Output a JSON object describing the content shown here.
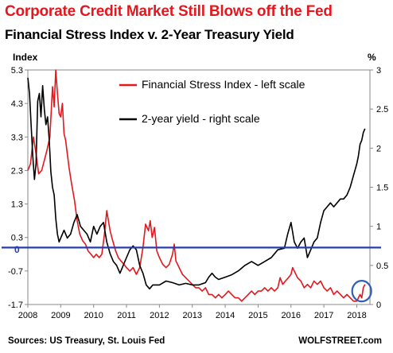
{
  "header": {
    "title": "Corporate Credit Market Still Blows off the Fed",
    "subtitle": "Financial Stress Index v. 2-Year Treasury Yield"
  },
  "footer": {
    "source": "Sources: US Treasury, St. Louis Fed",
    "brand": "WOLFSTREET.com"
  },
  "colors": {
    "fsi": "#e3181e",
    "yield": "#000000",
    "zero_line": "#2a3dae",
    "circle": "#2f5fb3",
    "title": "#e3181e"
  },
  "chart_data": {
    "type": "line",
    "left_axis": {
      "unit_label": "Index",
      "ticks": [
        -1.7,
        -0.7,
        0.3,
        1.3,
        2.3,
        3.3,
        4.3,
        5.3
      ],
      "tick_labels": [
        "-1.7",
        "-0.7",
        "0.3",
        "1.3",
        "2.3",
        "3.3",
        "4.3",
        "5.3"
      ],
      "zero_label": "0",
      "range": [
        -1.7,
        5.3
      ]
    },
    "right_axis": {
      "unit_label": "%",
      "ticks": [
        0,
        0.5,
        1,
        1.5,
        2,
        2.5,
        3
      ],
      "tick_labels": [
        "0",
        "0.5",
        "1",
        "1.5",
        "2",
        "2.5",
        "3"
      ],
      "range": [
        0,
        3
      ]
    },
    "x_axis": {
      "range": [
        2008,
        2018.4
      ],
      "ticks": [
        2008,
        2009,
        2010,
        2011,
        2012,
        2013,
        2014,
        2015,
        2016,
        2017,
        2018
      ],
      "tick_labels": [
        "2008",
        "2009",
        "2010",
        "2011",
        "2012",
        "2013",
        "2014",
        "2015",
        "2016",
        "2017",
        "2018"
      ]
    },
    "legend": {
      "position": "top-center",
      "entries": [
        "Financial Stress Index - left scale",
        "2-year yield - right scale"
      ]
    },
    "annotations": {
      "zero_line_value": 0,
      "highlight": "circle around the latest readings in early 2018"
    },
    "series": [
      {
        "name": "Financial Stress Index - left scale",
        "axis": "left",
        "x": [
          2008.0,
          2008.08,
          2008.17,
          2008.25,
          2008.33,
          2008.42,
          2008.5,
          2008.58,
          2008.67,
          2008.75,
          2008.8,
          2008.85,
          2008.9,
          2008.95,
          2009.0,
          2009.05,
          2009.1,
          2009.15,
          2009.2,
          2009.25,
          2009.33,
          2009.42,
          2009.5,
          2009.58,
          2009.67,
          2009.75,
          2009.83,
          2009.92,
          2010.0,
          2010.08,
          2010.17,
          2010.25,
          2010.33,
          2010.4,
          2010.45,
          2010.5,
          2010.58,
          2010.67,
          2010.75,
          2010.83,
          2010.92,
          2011.0,
          2011.1,
          2011.2,
          2011.3,
          2011.4,
          2011.5,
          2011.58,
          2011.67,
          2011.72,
          2011.78,
          2011.85,
          2011.92,
          2012.0,
          2012.1,
          2012.2,
          2012.3,
          2012.4,
          2012.45,
          2012.5,
          2012.6,
          2012.7,
          2012.8,
          2012.9,
          2013.0,
          2013.1,
          2013.2,
          2013.3,
          2013.4,
          2013.5,
          2013.6,
          2013.7,
          2013.8,
          2013.9,
          2014.0,
          2014.1,
          2014.2,
          2014.3,
          2014.4,
          2014.5,
          2014.6,
          2014.7,
          2014.8,
          2014.9,
          2015.0,
          2015.1,
          2015.2,
          2015.3,
          2015.4,
          2015.5,
          2015.6,
          2015.67,
          2015.75,
          2015.83,
          2015.92,
          2016.0,
          2016.05,
          2016.1,
          2016.2,
          2016.3,
          2016.4,
          2016.5,
          2016.6,
          2016.7,
          2016.8,
          2016.9,
          2017.0,
          2017.1,
          2017.2,
          2017.3,
          2017.4,
          2017.5,
          2017.6,
          2017.7,
          2017.8,
          2017.9,
          2018.0,
          2018.05,
          2018.1,
          2018.15,
          2018.2,
          2018.25
        ],
        "values": [
          2.3,
          2.5,
          3.3,
          2.8,
          2.2,
          2.3,
          2.6,
          2.9,
          3.3,
          4.8,
          4.2,
          5.3,
          4.6,
          4.0,
          3.9,
          4.3,
          3.4,
          3.2,
          2.8,
          2.4,
          1.9,
          1.4,
          0.8,
          0.4,
          0.2,
          0.1,
          -0.1,
          -0.2,
          -0.3,
          -0.2,
          -0.3,
          -0.2,
          0.4,
          1.1,
          0.8,
          0.5,
          0.2,
          -0.1,
          -0.3,
          -0.4,
          -0.5,
          -0.6,
          -0.7,
          -0.6,
          -0.8,
          -0.6,
          0.0,
          0.7,
          0.5,
          0.8,
          0.3,
          0.6,
          -0.1,
          -0.3,
          -0.5,
          -0.6,
          -0.5,
          -0.2,
          0.1,
          -0.4,
          -0.6,
          -0.8,
          -0.9,
          -1.0,
          -1.1,
          -1.2,
          -1.2,
          -1.3,
          -1.2,
          -1.4,
          -1.4,
          -1.5,
          -1.4,
          -1.5,
          -1.4,
          -1.3,
          -1.4,
          -1.5,
          -1.5,
          -1.6,
          -1.5,
          -1.4,
          -1.3,
          -1.4,
          -1.3,
          -1.3,
          -1.2,
          -1.3,
          -1.2,
          -1.3,
          -1.2,
          -0.9,
          -1.1,
          -1.0,
          -0.9,
          -0.8,
          -0.6,
          -0.7,
          -0.9,
          -1.0,
          -1.2,
          -1.1,
          -1.2,
          -1.0,
          -1.1,
          -1.0,
          -1.2,
          -1.3,
          -1.2,
          -1.4,
          -1.3,
          -1.4,
          -1.5,
          -1.4,
          -1.5,
          -1.6,
          -1.6,
          -1.5,
          -1.4,
          -1.5,
          -1.2,
          -1.1
        ]
      },
      {
        "name": "2-year yield - right scale",
        "axis": "right",
        "x": [
          2008.0,
          2008.05,
          2008.1,
          2008.15,
          2008.2,
          2008.25,
          2008.3,
          2008.35,
          2008.4,
          2008.45,
          2008.5,
          2008.55,
          2008.6,
          2008.65,
          2008.7,
          2008.75,
          2008.8,
          2008.85,
          2008.9,
          2008.95,
          2009.0,
          2009.1,
          2009.2,
          2009.3,
          2009.4,
          2009.5,
          2009.6,
          2009.7,
          2009.8,
          2009.9,
          2010.0,
          2010.1,
          2010.2,
          2010.3,
          2010.4,
          2010.5,
          2010.6,
          2010.7,
          2010.8,
          2010.9,
          2011.0,
          2011.1,
          2011.2,
          2011.3,
          2011.4,
          2011.5,
          2011.6,
          2011.7,
          2011.8,
          2011.9,
          2012.0,
          2012.2,
          2012.4,
          2012.6,
          2012.8,
          2013.0,
          2013.2,
          2013.4,
          2013.5,
          2013.6,
          2013.7,
          2013.8,
          2014.0,
          2014.2,
          2014.4,
          2014.6,
          2014.8,
          2015.0,
          2015.2,
          2015.4,
          2015.6,
          2015.8,
          2015.9,
          2016.0,
          2016.1,
          2016.2,
          2016.3,
          2016.4,
          2016.5,
          2016.6,
          2016.7,
          2016.8,
          2016.9,
          2017.0,
          2017.1,
          2017.2,
          2017.3,
          2017.4,
          2017.5,
          2017.6,
          2017.7,
          2017.8,
          2017.9,
          2018.0,
          2018.05,
          2018.1,
          2018.15,
          2018.2,
          2018.25
        ],
        "values": [
          2.9,
          2.7,
          2.3,
          1.9,
          1.6,
          1.8,
          2.6,
          2.7,
          2.4,
          2.8,
          2.5,
          2.3,
          2.4,
          2.1,
          1.7,
          1.5,
          1.4,
          1.1,
          0.9,
          0.8,
          0.85,
          0.95,
          0.85,
          0.9,
          1.05,
          1.15,
          1.0,
          0.95,
          0.9,
          0.8,
          1.0,
          0.9,
          1.0,
          1.05,
          0.8,
          0.65,
          0.55,
          0.5,
          0.4,
          0.5,
          0.6,
          0.7,
          0.75,
          0.7,
          0.5,
          0.4,
          0.25,
          0.2,
          0.25,
          0.25,
          0.25,
          0.3,
          0.28,
          0.25,
          0.27,
          0.25,
          0.25,
          0.28,
          0.35,
          0.4,
          0.35,
          0.32,
          0.35,
          0.38,
          0.43,
          0.5,
          0.55,
          0.5,
          0.55,
          0.6,
          0.7,
          0.72,
          0.9,
          1.05,
          0.8,
          0.72,
          0.8,
          0.85,
          0.6,
          0.7,
          0.8,
          0.85,
          1.05,
          1.2,
          1.25,
          1.3,
          1.25,
          1.3,
          1.35,
          1.35,
          1.4,
          1.5,
          1.65,
          1.8,
          1.9,
          2.05,
          2.1,
          2.2,
          2.25
        ]
      }
    ]
  }
}
